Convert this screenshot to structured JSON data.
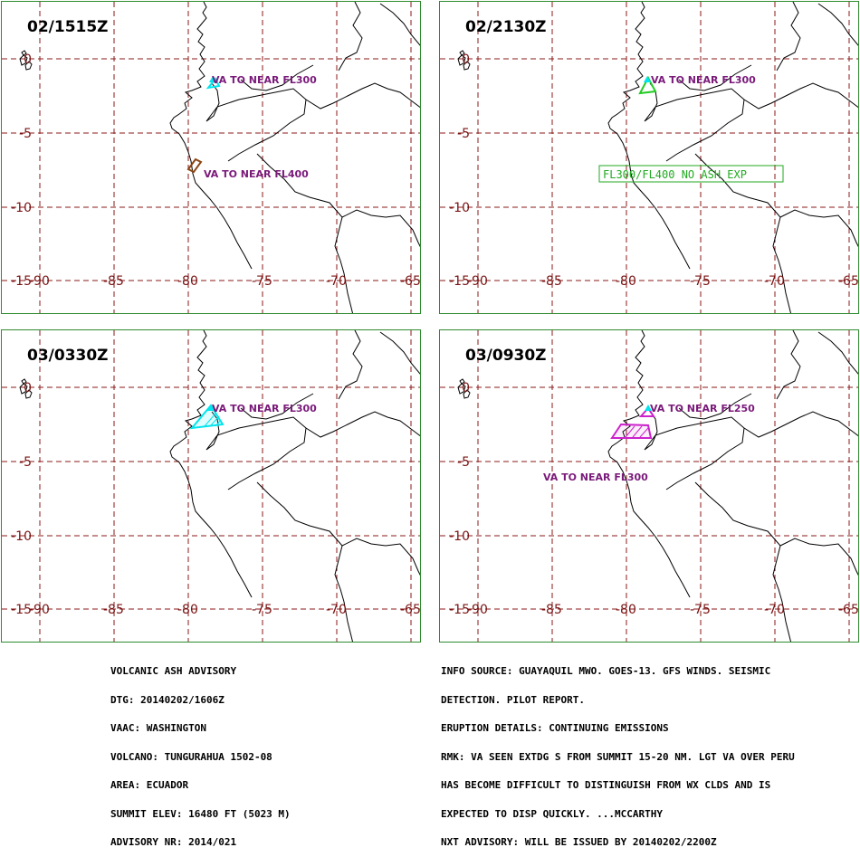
{
  "map": {
    "lon_ticks": [
      "-90",
      "-85",
      "-80",
      "-75",
      "-70",
      "-65"
    ],
    "lat_ticks": [
      "0",
      "-5",
      "-10",
      "-15"
    ],
    "colors": {
      "grid": "#8b1a1a",
      "coast": "#000000",
      "border": "#2e8b2e",
      "volcano": "#00e5ee",
      "label": "#7a1a7a"
    },
    "volcano_icon": "volcano-triangle-icon"
  },
  "panels": [
    {
      "time": "02/1515Z",
      "labels": [
        "VA TO NEAR FL300",
        "VA TO NEAR FL400"
      ],
      "polygon_colors": [
        "#00e5ee",
        "#8b4513"
      ]
    },
    {
      "time": "02/2130Z",
      "labels": [
        "VA TO NEAR FL300"
      ],
      "noash": "FL300/FL400 NO ASH EXP",
      "polygon_colors": [
        "#22cc22"
      ]
    },
    {
      "time": "03/0330Z",
      "labels": [
        "VA TO NEAR FL300"
      ],
      "polygon_colors": [
        "#00e5ee"
      ]
    },
    {
      "time": "03/0930Z",
      "labels": [
        "VA TO NEAR FL250",
        "VA TO NEAR FL300"
      ],
      "polygon_colors": [
        "#cc22cc",
        "#cc22cc"
      ]
    }
  ],
  "advisory_left": [
    "VOLCANIC ASH ADVISORY",
    "DTG: 20140202/1606Z",
    "VAAC: WASHINGTON",
    "VOLCANO: TUNGURAHUA 1502-08",
    "AREA: ECUADOR",
    "SUMMIT ELEV: 16480 FT (5023 M)",
    "ADVISORY NR: 2014/021"
  ],
  "advisory_right": [
    "INFO SOURCE: GUAYAQUIL MWO. GOES-13. GFS WINDS. SEISMIC",
    "DETECTION. PILOT REPORT.",
    "ERUPTION DETAILS: CONTINUING EMISSIONS",
    "RMK: VA SEEN EXTDG S FROM SUMMIT 15-20 NM. LGT VA OVER PERU",
    "HAS BECOME DIFFICULT TO DISTINGUISH FROM WX CLDS AND IS",
    "EXPECTED TO DISP QUICKLY. ...MCCARTHY",
    "NXT ADVISORY: WILL BE ISSUED BY 20140202/2200Z"
  ]
}
